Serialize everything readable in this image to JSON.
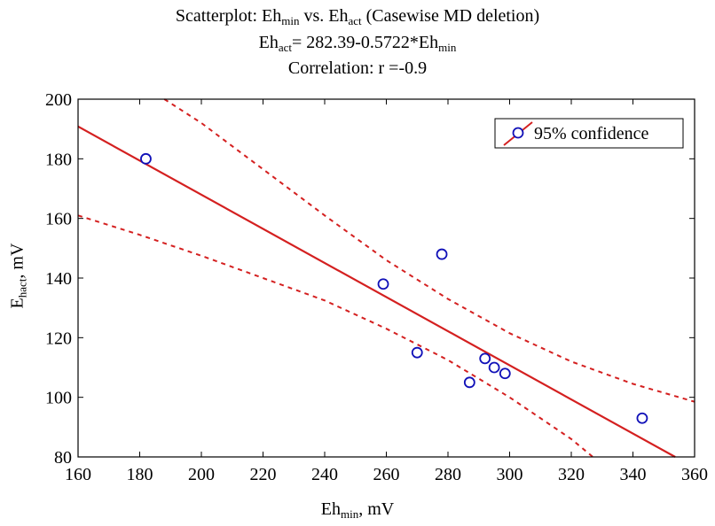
{
  "chart_data": {
    "type": "scatter",
    "title": {
      "prefix": "Scatterplot: Eh",
      "sub1": "min",
      "middle": " vs. Eh",
      "sub2": "act",
      "suffix": " (Casewise MD deletion)"
    },
    "equation": {
      "prefix": "Eh",
      "sub": "act",
      "rest": "= 282.39-0.5722*Eh",
      "sub2": "min"
    },
    "correlation": "Correlation: r =-0.9",
    "xlabel": {
      "main": "Eh",
      "sub": "min",
      "suffix": ", mV"
    },
    "ylabel": {
      "main": "E",
      "sub": "hact",
      "suffix": ", mV"
    },
    "xlim": [
      160,
      360
    ],
    "ylim": [
      80,
      200
    ],
    "xticks": [
      160,
      180,
      200,
      220,
      240,
      260,
      280,
      300,
      320,
      340,
      360
    ],
    "yticks": [
      80,
      100,
      120,
      140,
      160,
      180,
      200
    ],
    "legend": {
      "label": "95% confidence",
      "position": "top-right"
    },
    "regression": {
      "intercept": 282.39,
      "slope": -0.5722
    },
    "points": [
      {
        "x": 182,
        "y": 180
      },
      {
        "x": 259,
        "y": 138
      },
      {
        "x": 270,
        "y": 115
      },
      {
        "x": 278,
        "y": 148
      },
      {
        "x": 287,
        "y": 105
      },
      {
        "x": 292,
        "y": 113
      },
      {
        "x": 295,
        "y": 110
      },
      {
        "x": 298.5,
        "y": 108
      },
      {
        "x": 343,
        "y": 93
      }
    ],
    "confidence_upper": [
      {
        "x": 188,
        "y": 200
      },
      {
        "x": 200,
        "y": 192
      },
      {
        "x": 220,
        "y": 176.5
      },
      {
        "x": 240,
        "y": 161
      },
      {
        "x": 260,
        "y": 146
      },
      {
        "x": 280,
        "y": 133
      },
      {
        "x": 300,
        "y": 121.5
      },
      {
        "x": 320,
        "y": 112
      },
      {
        "x": 340,
        "y": 104.5
      },
      {
        "x": 360,
        "y": 98.5
      }
    ],
    "confidence_lower": [
      {
        "x": 160,
        "y": 161
      },
      {
        "x": 180,
        "y": 154.5
      },
      {
        "x": 200,
        "y": 147.5
      },
      {
        "x": 220,
        "y": 140
      },
      {
        "x": 240,
        "y": 132.5
      },
      {
        "x": 260,
        "y": 123
      },
      {
        "x": 280,
        "y": 112.5
      },
      {
        "x": 300,
        "y": 100
      },
      {
        "x": 320,
        "y": 86
      },
      {
        "x": 327,
        "y": 80
      }
    ],
    "colors": {
      "line": "#d42020",
      "point": "#1010b8",
      "axis": "#000000"
    }
  }
}
